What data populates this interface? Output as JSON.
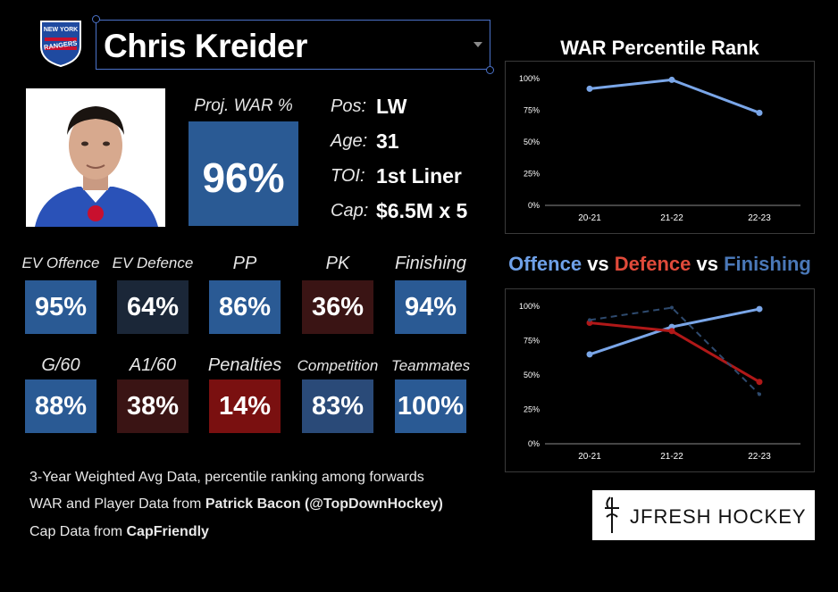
{
  "header": {
    "player_name": "Chris Kreider",
    "team_logo_text_top": "NEW YORK",
    "team_logo_text_bottom": "RANGERS"
  },
  "proj_war": {
    "label": "Proj. WAR %",
    "value": "96%"
  },
  "info": [
    {
      "label": "Pos:",
      "value": "LW"
    },
    {
      "label": "Age:",
      "value": "31"
    },
    {
      "label": "TOI:",
      "value": "1st Liner"
    },
    {
      "label": "Cap:",
      "value": "$6.5M x 5"
    }
  ],
  "tiles_row1": [
    {
      "label": "EV Offence",
      "value": "95%",
      "color": "#2a5a94"
    },
    {
      "label": "EV Defence",
      "value": "64%",
      "color": "#1b2738"
    },
    {
      "label": "PP",
      "value": "86%",
      "color": "#2a5a94"
    },
    {
      "label": "PK",
      "value": "36%",
      "color": "#3a1414"
    },
    {
      "label": "Finishing",
      "value": "94%",
      "color": "#2a5a94"
    }
  ],
  "tiles_row2": [
    {
      "label": "G/60",
      "value": "88%",
      "color": "#2a5a94"
    },
    {
      "label": "A1/60",
      "value": "38%",
      "color": "#3a1414"
    },
    {
      "label": "Penalties",
      "value": "14%",
      "color": "#7a1010"
    },
    {
      "label": "Competition",
      "value": "83%",
      "color": "#2a4a78"
    },
    {
      "label": "Teammates",
      "value": "100%",
      "color": "#2a5a94"
    }
  ],
  "footer": {
    "line1": "3-Year Weighted Avg Data, percentile ranking among forwards",
    "line2_prefix": "WAR and Player Data from ",
    "line2_bold": "Patrick Bacon (@TopDownHockey)",
    "line3_prefix": "Cap Data from ",
    "line3_bold": "CapFriendly"
  },
  "brand": {
    "text": "JFRESH HOCKEY"
  },
  "chart_data": [
    {
      "type": "line",
      "title": "WAR Percentile Rank",
      "categories": [
        "20-21",
        "21-22",
        "22-23"
      ],
      "y_ticks": [
        "0%",
        "25%",
        "50%",
        "75%",
        "100%"
      ],
      "ylim": [
        0,
        100
      ],
      "series": [
        {
          "values": [
            92,
            99,
            73
          ],
          "color": "#7aa6e8",
          "dash": false
        }
      ]
    },
    {
      "type": "line",
      "title_parts": [
        {
          "text": "Offence",
          "color": "#6ea0e8"
        },
        {
          "text": " vs ",
          "color": "#ffffff"
        },
        {
          "text": "Defence",
          "color": "#e04a3a"
        },
        {
          "text": " vs ",
          "color": "#ffffff"
        },
        {
          "text": "Finishing",
          "color": "#4a78b8"
        }
      ],
      "categories": [
        "20-21",
        "21-22",
        "22-23"
      ],
      "y_ticks": [
        "0%",
        "25%",
        "50%",
        "75%",
        "100%"
      ],
      "ylim": [
        0,
        100
      ],
      "series": [
        {
          "name": "Offence",
          "values": [
            65,
            85,
            98
          ],
          "color": "#7aa6e8",
          "dash": false
        },
        {
          "name": "Defence",
          "values": [
            88,
            82,
            45
          ],
          "color": "#b01818",
          "dash": false
        },
        {
          "name": "Finishing",
          "values": [
            90,
            99,
            36
          ],
          "color": "#2e4a6e",
          "dash": true
        }
      ]
    }
  ]
}
